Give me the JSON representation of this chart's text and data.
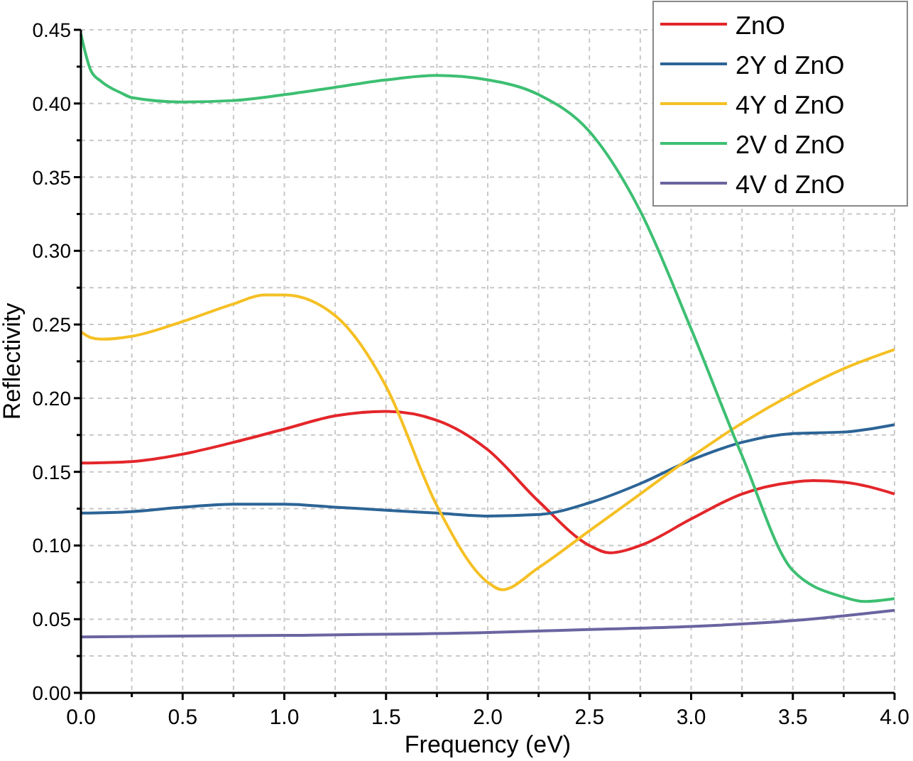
{
  "chart_data": {
    "type": "line",
    "xlabel": "Frequency (eV)",
    "ylabel": "Reflectivity",
    "xlim": [
      0,
      4
    ],
    "ylim": [
      0,
      0.45
    ],
    "xticks": [
      {
        "value": 0,
        "label": "0.0"
      },
      {
        "value": 0.25,
        "label": null
      },
      {
        "value": 0.5,
        "label": "0.5"
      },
      {
        "value": 0.75,
        "label": null
      },
      {
        "value": 1,
        "label": "1.0"
      },
      {
        "value": 1.25,
        "label": null
      },
      {
        "value": 1.5,
        "label": "1.5"
      },
      {
        "value": 1.75,
        "label": null
      },
      {
        "value": 2,
        "label": "2.0"
      },
      {
        "value": 2.25,
        "label": null
      },
      {
        "value": 2.5,
        "label": "2.5"
      },
      {
        "value": 2.75,
        "label": null
      },
      {
        "value": 3,
        "label": "3.0"
      },
      {
        "value": 3.25,
        "label": null
      },
      {
        "value": 3.5,
        "label": "3.5"
      },
      {
        "value": 3.75,
        "label": null
      },
      {
        "value": 4,
        "label": "4.0"
      }
    ],
    "yticks": [
      {
        "value": 0,
        "label": "0.00"
      },
      {
        "value": 0.025,
        "label": null
      },
      {
        "value": 0.05,
        "label": "0.05"
      },
      {
        "value": 0.075,
        "label": null
      },
      {
        "value": 0.1,
        "label": "0.10"
      },
      {
        "value": 0.125,
        "label": null
      },
      {
        "value": 0.15,
        "label": "0.15"
      },
      {
        "value": 0.175,
        "label": null
      },
      {
        "value": 0.2,
        "label": "0.20"
      },
      {
        "value": 0.225,
        "label": null
      },
      {
        "value": 0.25,
        "label": "0.25"
      },
      {
        "value": 0.275,
        "label": null
      },
      {
        "value": 0.3,
        "label": "0.30"
      },
      {
        "value": 0.325,
        "label": null
      },
      {
        "value": 0.35,
        "label": "0.35"
      },
      {
        "value": 0.375,
        "label": null
      },
      {
        "value": 0.4,
        "label": "0.40"
      },
      {
        "value": 0.425,
        "label": null
      },
      {
        "value": 0.45,
        "label": "0.45"
      }
    ],
    "grid": true,
    "legend": "top right",
    "marker": "none",
    "line_style": "solid",
    "series": [
      {
        "name": "ZnO",
        "color": "#e3262a",
        "x": [
          0,
          0.25,
          0.5,
          0.75,
          1,
          1.25,
          1.5,
          1.75,
          2,
          2.25,
          2.5,
          2.6,
          2.75,
          3,
          3.25,
          3.5,
          3.6,
          3.75,
          4
        ],
        "values": [
          0.156,
          0.157,
          0.162,
          0.17,
          0.179,
          0.188,
          0.191,
          0.185,
          0.165,
          0.13,
          0.1,
          0.095,
          0.1,
          0.118,
          0.135,
          0.143,
          0.144,
          0.143,
          0.135
        ]
      },
      {
        "name": "2Y d ZnO",
        "color": "#2c6496",
        "x": [
          0,
          0.25,
          0.5,
          0.75,
          1,
          1.25,
          1.5,
          1.75,
          2,
          2.25,
          2.5,
          2.75,
          3,
          3.25,
          3.5,
          3.75,
          4
        ],
        "values": [
          0.122,
          0.123,
          0.126,
          0.128,
          0.128,
          0.126,
          0.124,
          0.122,
          0.12,
          0.121,
          0.129,
          0.142,
          0.158,
          0.17,
          0.176,
          0.177,
          0.182
        ]
      },
      {
        "name": "4Y d ZnO",
        "color": "#f5c024",
        "x": [
          0,
          0.05,
          0.1,
          0.25,
          0.5,
          0.75,
          0.9,
          1,
          1.25,
          1.5,
          1.75,
          2,
          2.07,
          2.25,
          2.5,
          2.75,
          3,
          3.25,
          3.5,
          3.75,
          4
        ],
        "values": [
          0.245,
          0.241,
          0.24,
          0.242,
          0.252,
          0.264,
          0.27,
          0.27,
          0.256,
          0.208,
          0.127,
          0.075,
          0.07,
          0.085,
          0.11,
          0.135,
          0.16,
          0.183,
          0.203,
          0.22,
          0.233
        ]
      },
      {
        "name": "2V d ZnO",
        "color": "#3dbf72",
        "x": [
          0,
          0.05,
          0.1,
          0.2,
          0.25,
          0.5,
          0.75,
          1,
          1.25,
          1.5,
          1.75,
          2,
          2.25,
          2.5,
          2.75,
          3,
          3.25,
          3.5,
          3.75,
          3.85,
          4
        ],
        "values": [
          0.447,
          0.422,
          0.415,
          0.407,
          0.404,
          0.401,
          0.402,
          0.406,
          0.411,
          0.416,
          0.419,
          0.416,
          0.406,
          0.381,
          0.327,
          0.247,
          0.161,
          0.083,
          0.065,
          0.062,
          0.064
        ]
      },
      {
        "name": "4V d ZnO",
        "color": "#6a64a0",
        "x": [
          0,
          1,
          2,
          2.5,
          3,
          3.5,
          4
        ],
        "values": [
          0.038,
          0.039,
          0.041,
          0.043,
          0.045,
          0.049,
          0.056
        ]
      }
    ]
  }
}
